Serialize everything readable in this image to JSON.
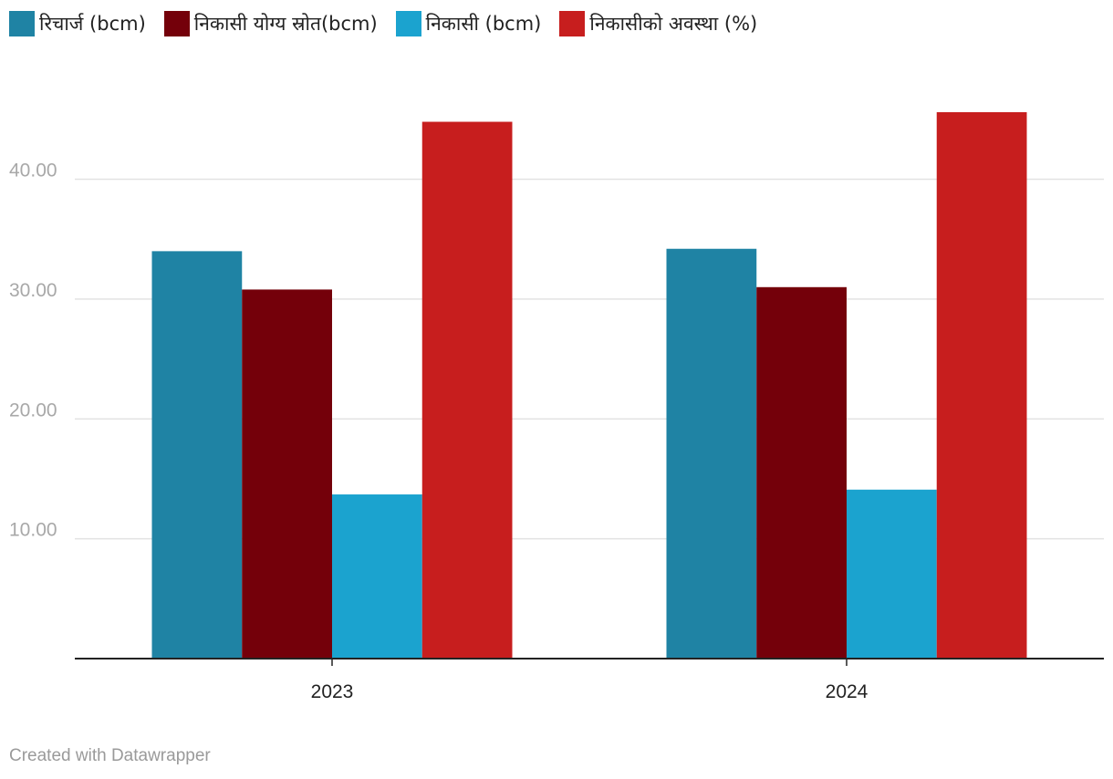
{
  "chart_data": {
    "type": "bar",
    "categories": [
      "2023",
      "2024"
    ],
    "series": [
      {
        "name": "रिचार्ज (bcm)",
        "values": [
          34.0,
          34.2
        ],
        "color": "#1f83a4"
      },
      {
        "name": "निकासी योग्य स्रोत(bcm)",
        "values": [
          30.8,
          31.0
        ],
        "color": "#74000a"
      },
      {
        "name": "निकासी (bcm)",
        "values": [
          13.7,
          14.1
        ],
        "color": "#1ba3cf"
      },
      {
        "name": "निकासीको अवस्था (%)",
        "values": [
          44.8,
          45.6
        ],
        "color": "#c71e1e"
      }
    ],
    "yticks": [
      "10.00",
      "20.00",
      "30.00",
      "40.00"
    ],
    "ylim": [
      0,
      45.6
    ],
    "grid": true,
    "legend_position": "top-left",
    "title": "",
    "xlabel": "",
    "ylabel": ""
  },
  "credit": "Created with Datawrapper"
}
